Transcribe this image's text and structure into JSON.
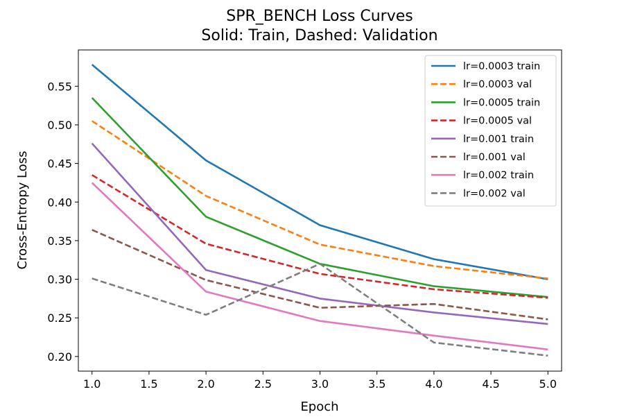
{
  "chart_data": {
    "type": "line",
    "title": "SPR_BENCH Loss Curves",
    "subtitle": "Solid: Train, Dashed: Validation",
    "xlabel": "Epoch",
    "ylabel": "Cross-Entropy Loss",
    "xlim": [
      0.88,
      5.12
    ],
    "ylim": [
      0.181,
      0.597
    ],
    "x_ticks": [
      1.0,
      1.5,
      2.0,
      2.5,
      3.0,
      3.5,
      4.0,
      4.5,
      5.0
    ],
    "x_tick_labels": [
      "1.0",
      "1.5",
      "2.0",
      "2.5",
      "3.0",
      "3.5",
      "4.0",
      "4.5",
      "5.0"
    ],
    "y_ticks": [
      0.2,
      0.25,
      0.3,
      0.35,
      0.4,
      0.45,
      0.5,
      0.55
    ],
    "y_tick_labels": [
      "0.20",
      "0.25",
      "0.30",
      "0.35",
      "0.40",
      "0.45",
      "0.50",
      "0.55"
    ],
    "grid": false,
    "legend_position": "top-right",
    "x": [
      1,
      2,
      3,
      4,
      5
    ],
    "series": [
      {
        "name": "lr=0.0003 train",
        "color": "#1f77b4",
        "style": "solid",
        "values": [
          0.578,
          0.454,
          0.37,
          0.326,
          0.3
        ]
      },
      {
        "name": "lr=0.0003 val",
        "color": "#ff7f0e",
        "style": "dashed",
        "values": [
          0.505,
          0.408,
          0.345,
          0.317,
          0.301
        ]
      },
      {
        "name": "lr=0.0005 train",
        "color": "#2ca02c",
        "style": "solid",
        "values": [
          0.535,
          0.381,
          0.32,
          0.291,
          0.277
        ]
      },
      {
        "name": "lr=0.0005 val",
        "color": "#d62728",
        "style": "dashed",
        "values": [
          0.435,
          0.346,
          0.307,
          0.287,
          0.276
        ]
      },
      {
        "name": "lr=0.001 train",
        "color": "#9467bd",
        "style": "solid",
        "values": [
          0.476,
          0.312,
          0.275,
          0.257,
          0.242
        ]
      },
      {
        "name": "lr=0.001 val",
        "color": "#8c564b",
        "style": "dashed",
        "values": [
          0.364,
          0.299,
          0.263,
          0.268,
          0.248
        ]
      },
      {
        "name": "lr=0.002 train",
        "color": "#e377c2",
        "style": "solid",
        "values": [
          0.425,
          0.284,
          0.246,
          0.227,
          0.209
        ]
      },
      {
        "name": "lr=0.002 val",
        "color": "#7f7f7f",
        "style": "dashed",
        "values": [
          0.301,
          0.254,
          0.32,
          0.218,
          0.201
        ]
      }
    ]
  }
}
